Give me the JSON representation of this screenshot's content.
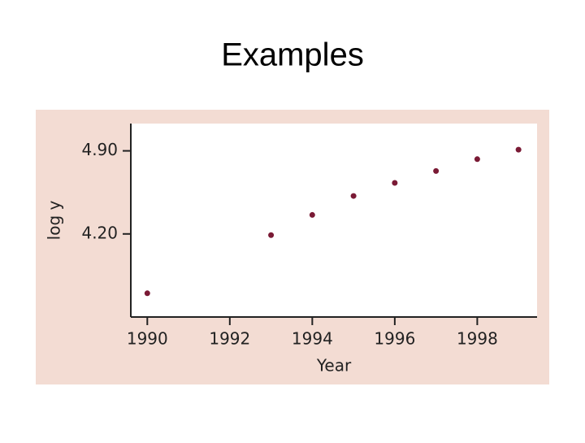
{
  "title": "Examples",
  "chart_data": {
    "type": "scatter",
    "x_label": "Year",
    "y_label": "log y",
    "x": [
      1990,
      1993,
      1994,
      1995,
      1996,
      1997,
      1998,
      1999
    ],
    "values": [
      3.7,
      4.19,
      4.36,
      4.52,
      4.63,
      4.73,
      4.83,
      4.91
    ],
    "color": "#7a1a35",
    "xlim": [
      1989.6,
      1999.45
    ],
    "ylim": [
      3.5,
      5.13
    ],
    "xticks": [
      1990,
      1992,
      1994,
      1996,
      1998
    ],
    "yticks": [
      {
        "value": 4.2,
        "label": "4.20"
      },
      {
        "value": 4.9,
        "label": "4.90"
      }
    ]
  }
}
